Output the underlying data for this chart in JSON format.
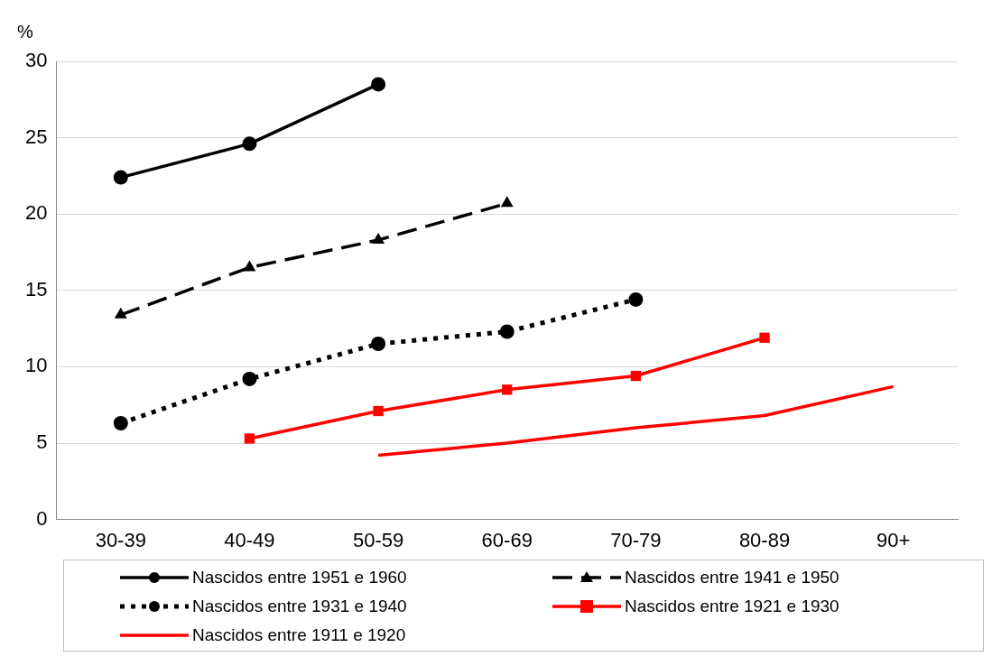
{
  "chart_data": {
    "type": "line",
    "ylabel": "%",
    "categories": [
      "30-39",
      "40-49",
      "50-59",
      "60-69",
      "70-79",
      "80-89",
      "90+"
    ],
    "series": [
      {
        "name": "Nascidos entre 1951 e 1960",
        "color": "#000000",
        "marker": "circle",
        "line_style": "solid",
        "values": [
          22.4,
          24.6,
          28.5,
          null,
          null,
          null,
          null
        ]
      },
      {
        "name": "Nascidos entre 1941 e 1950",
        "color": "#000000",
        "marker": "triangle",
        "line_style": "dashed",
        "values": [
          13.4,
          16.5,
          18.3,
          20.7,
          null,
          null,
          null
        ]
      },
      {
        "name": "Nascidos entre 1931 e 1940",
        "color": "#000000",
        "marker": "circle",
        "line_style": "dotted",
        "values": [
          6.3,
          9.2,
          11.5,
          12.3,
          14.4,
          null,
          null
        ]
      },
      {
        "name": "Nascidos entre 1921 e 1930",
        "color": "#ff0000",
        "marker": "square",
        "line_style": "solid",
        "values": [
          null,
          5.3,
          7.1,
          8.5,
          9.4,
          11.9,
          null
        ]
      },
      {
        "name": "Nascidos entre 1911 e 1920",
        "color": "#ff0000",
        "marker": "none",
        "line_style": "solid",
        "values": [
          null,
          null,
          4.2,
          5.0,
          6.0,
          6.8,
          8.7
        ]
      }
    ],
    "ylim": [
      0,
      30
    ],
    "yticks": [
      0,
      5,
      10,
      15,
      20,
      25,
      30
    ],
    "grid": "y",
    "legend": "bottom"
  }
}
